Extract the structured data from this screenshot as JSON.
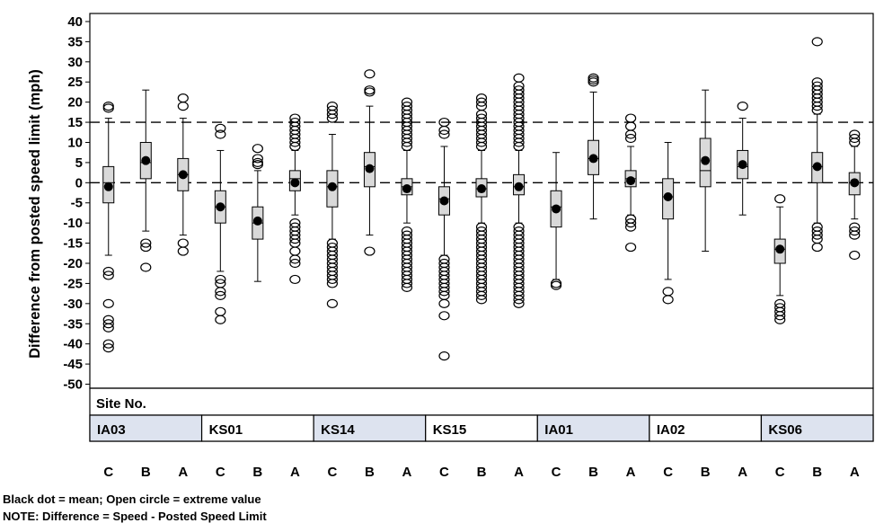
{
  "chart_data": {
    "type": "boxplot",
    "ylabel": "Difference from posted speed limit (mph)",
    "ylim": [
      -50,
      40
    ],
    "yticks": [
      40,
      35,
      30,
      25,
      20,
      15,
      10,
      5,
      0,
      -5,
      -10,
      -15,
      -20,
      -25,
      -30,
      -35,
      -40,
      -45,
      -50
    ],
    "reference_lines": [
      15,
      0
    ],
    "x_panel_title": "Site No.",
    "sites": [
      {
        "name": "IA03",
        "shaded": true
      },
      {
        "name": "KS01",
        "shaded": false
      },
      {
        "name": "KS14",
        "shaded": true
      },
      {
        "name": "KS15",
        "shaded": false
      },
      {
        "name": "IA01",
        "shaded": true
      },
      {
        "name": "IA02",
        "shaded": false
      },
      {
        "name": "KS06",
        "shaded": true
      }
    ],
    "site_fill_color": "#dde3ef",
    "box_fill_color": "#d9d9d9",
    "groups": [
      {
        "site": "IA03",
        "label": "C",
        "q1": -5,
        "median": 0,
        "q3": 4,
        "mean": -1,
        "whisker_low": -18,
        "whisker_high": 16,
        "outliers": [
          19,
          18.5,
          -22,
          -23,
          -30,
          -34,
          -35,
          -36,
          -40,
          -41
        ]
      },
      {
        "site": "IA03",
        "label": "B",
        "q1": 1,
        "median": 5,
        "q3": 10,
        "mean": 5.5,
        "whisker_low": -12,
        "whisker_high": 23,
        "outliers": [
          -15,
          -16,
          -21
        ]
      },
      {
        "site": "IA03",
        "label": "A",
        "q1": -2,
        "median": 2,
        "q3": 6,
        "mean": 2,
        "whisker_low": -13,
        "whisker_high": 16,
        "outliers": [
          21,
          19,
          -15,
          -17
        ]
      },
      {
        "site": "KS01",
        "label": "C",
        "q1": -10,
        "median": -6,
        "q3": -2,
        "mean": -6,
        "whisker_low": -22,
        "whisker_high": 8,
        "outliers": [
          13.5,
          12,
          -24,
          -25,
          -27,
          -28,
          -32,
          -34
        ]
      },
      {
        "site": "KS01",
        "label": "B",
        "q1": -14,
        "median": -10,
        "q3": -6,
        "mean": -9.5,
        "whisker_low": -24.5,
        "whisker_high": 3,
        "outliers": [
          8.5,
          6,
          5,
          4.5
        ]
      },
      {
        "site": "KS01",
        "label": "A",
        "q1": -2,
        "median": 1,
        "q3": 3,
        "mean": 0,
        "whisker_low": -8,
        "whisker_high": 8,
        "outliers": [
          16,
          15,
          14,
          13,
          12,
          11,
          10,
          9,
          -10,
          -11,
          -12,
          -13,
          -14,
          -15,
          -17,
          -19,
          -20,
          -24
        ]
      },
      {
        "site": "KS14",
        "label": "C",
        "q1": -6,
        "median": -1,
        "q3": 3,
        "mean": -1,
        "whisker_low": -14,
        "whisker_high": 12,
        "outliers": [
          19,
          18,
          17,
          16,
          -15,
          -16,
          -17,
          -18,
          -19,
          -20,
          -21,
          -22,
          -23,
          -24,
          -25,
          -30
        ]
      },
      {
        "site": "KS14",
        "label": "B",
        "q1": -1,
        "median": 4,
        "q3": 7.5,
        "mean": 3.5,
        "whisker_low": -13,
        "whisker_high": 19,
        "outliers": [
          27,
          23,
          22.5,
          -17
        ]
      },
      {
        "site": "KS14",
        "label": "A",
        "q1": -3,
        "median": -1,
        "q3": 1,
        "mean": -1.5,
        "whisker_low": -10,
        "whisker_high": 8,
        "outliers": [
          20,
          19,
          18,
          17,
          16,
          15,
          14,
          13,
          12,
          11,
          10,
          9,
          -12,
          -13,
          -14,
          -15,
          -16,
          -17,
          -18,
          -19,
          -20,
          -21,
          -22,
          -23,
          -24,
          -25,
          -26
        ]
      },
      {
        "site": "KS15",
        "label": "C",
        "q1": -8,
        "median": -4,
        "q3": -1,
        "mean": -4.5,
        "whisker_low": -18,
        "whisker_high": 9,
        "outliers": [
          15,
          13,
          12,
          -19,
          -20,
          -21,
          -22,
          -23,
          -24,
          -25,
          -26,
          -27,
          -28,
          -30,
          -33,
          -43
        ]
      },
      {
        "site": "KS15",
        "label": "B",
        "q1": -3.5,
        "median": -1.5,
        "q3": 1,
        "mean": -1.5,
        "whisker_low": -10,
        "whisker_high": 8,
        "outliers": [
          21,
          20,
          19,
          17,
          16,
          15,
          14,
          13,
          12,
          11,
          10,
          9,
          -11,
          -12,
          -13,
          -14,
          -15,
          -16,
          -17,
          -18,
          -19,
          -20,
          -21,
          -22,
          -23,
          -24,
          -25,
          -26,
          -27,
          -28,
          -29
        ]
      },
      {
        "site": "KS15",
        "label": "A",
        "q1": -3,
        "median": -1,
        "q3": 2,
        "mean": -1,
        "whisker_low": -10,
        "whisker_high": 8,
        "outliers": [
          26,
          24,
          23,
          22,
          21,
          20,
          19,
          18,
          17,
          16,
          15,
          14,
          13,
          12,
          11,
          10,
          9,
          -11,
          -12,
          -13,
          -14,
          -15,
          -16,
          -17,
          -18,
          -19,
          -20,
          -21,
          -22,
          -23,
          -24,
          -25,
          -26,
          -27,
          -28,
          -29,
          -30
        ]
      },
      {
        "site": "IA01",
        "label": "C",
        "q1": -11,
        "median": -6,
        "q3": -2,
        "mean": -6.5,
        "whisker_low": -24,
        "whisker_high": 7.5,
        "outliers": [
          -25,
          -25.5
        ]
      },
      {
        "site": "IA01",
        "label": "B",
        "q1": 2,
        "median": 6,
        "q3": 10.5,
        "mean": 6,
        "whisker_low": -9,
        "whisker_high": 22.5,
        "outliers": [
          26,
          25.5,
          25
        ]
      },
      {
        "site": "IA01",
        "label": "A",
        "q1": -1,
        "median": 1,
        "q3": 3,
        "mean": 0.5,
        "whisker_low": -8,
        "whisker_high": 9,
        "outliers": [
          16,
          14,
          12,
          11,
          -9,
          -10,
          -11,
          -16
        ]
      },
      {
        "site": "IA02",
        "label": "C",
        "q1": -9,
        "median": -3.5,
        "q3": 1,
        "mean": -3.5,
        "whisker_low": -24,
        "whisker_high": 10,
        "outliers": [
          -27,
          -29
        ]
      },
      {
        "site": "IA02",
        "label": "B",
        "q1": -1,
        "median": 3,
        "q3": 11,
        "mean": 5.5,
        "whisker_low": -17,
        "whisker_high": 23,
        "outliers": []
      },
      {
        "site": "IA02",
        "label": "A",
        "q1": 1,
        "median": 4,
        "q3": 8,
        "mean": 4.5,
        "whisker_low": -8,
        "whisker_high": 16,
        "outliers": [
          19
        ]
      },
      {
        "site": "KS06",
        "label": "C",
        "q1": -20,
        "median": -16.5,
        "q3": -14,
        "mean": -16.5,
        "whisker_low": -28,
        "whisker_high": -6,
        "outliers": [
          -4,
          -30,
          -31,
          -32,
          -33,
          -34
        ]
      },
      {
        "site": "KS06",
        "label": "B",
        "q1": 0,
        "median": 4,
        "q3": 7.5,
        "mean": 4,
        "whisker_low": -10,
        "whisker_high": 17,
        "outliers": [
          35,
          25,
          24,
          23,
          22,
          21,
          20,
          19,
          18,
          -11,
          -12,
          -13,
          -14,
          -16
        ]
      },
      {
        "site": "KS06",
        "label": "A",
        "q1": -3,
        "median": 0,
        "q3": 2.5,
        "mean": 0,
        "whisker_low": -9,
        "whisker_high": 9,
        "outliers": [
          12,
          11,
          10,
          -11,
          -12,
          -13,
          -18
        ]
      }
    ]
  },
  "notes": {
    "line1": "Black dot = mean; Open circle = extreme value",
    "line2": "NOTE: Difference = Speed - Posted Speed Limit"
  }
}
